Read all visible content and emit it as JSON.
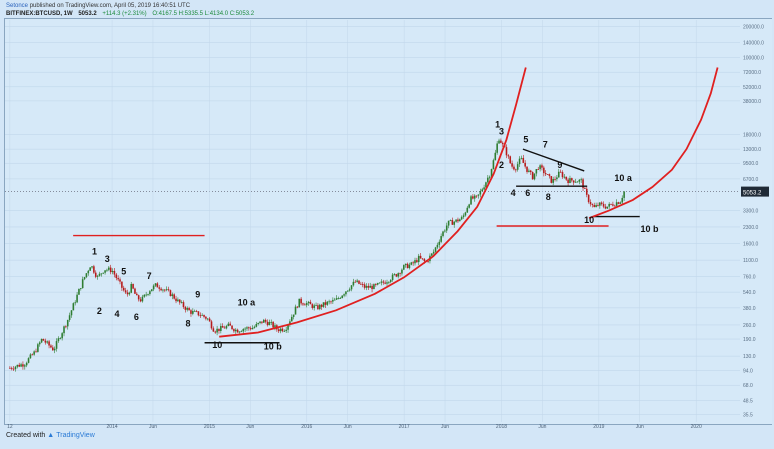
{
  "header": {
    "author": "Setonce",
    "published": "published on TradingView.com, April 05, 2019 16:40:51 UTC",
    "symbol": "BITFINEX:BTCUSD, 1W",
    "last": "5053.2",
    "change": "+114.3 (+2.31%)",
    "ohlc": "O:4167.5 H:5335.5 L:4134.0 C:5053.2"
  },
  "footer": {
    "created_with": "Created with",
    "brand": "TradingView"
  },
  "colors": {
    "background": "#d6e9f8",
    "candle_up": "#2e7d32",
    "candle_down": "#b71c1c",
    "curve": "#e02020",
    "last_price_box": "#1f2a36"
  },
  "chart_data": {
    "type": "candlestick",
    "scale": "log",
    "y_ticks": [
      "200000.0",
      "140000.0",
      "100000.0",
      "72000.0",
      "52000.0",
      "38000.0",
      "18000.0",
      "13000.0",
      "9500.0",
      "6700.0",
      "5053.2",
      "3300.0",
      "2300.0",
      "1600.0",
      "1100.0",
      "760.0",
      "540.0",
      "380.0",
      "260.0",
      "190.0",
      "130.0",
      "94.0",
      "68.0",
      "48.5",
      "35.5"
    ],
    "last_price": "5053.2",
    "x_ticks": [
      "12",
      "2014",
      "Jun",
      "2015",
      "Jun",
      "2016",
      "Jun",
      "2017",
      "Jun",
      "2018",
      "Jun",
      "2019",
      "Jun",
      "2020"
    ],
    "x_tick_dates": [
      2012.95,
      2014.0,
      2014.42,
      2015.0,
      2015.42,
      2016.0,
      2016.42,
      2017.0,
      2017.42,
      2018.0,
      2018.42,
      2019.0,
      2019.42,
      2020.0
    ],
    "price_path": [
      [
        2012.95,
        100
      ],
      [
        2013.1,
        110
      ],
      [
        2013.2,
        140
      ],
      [
        2013.28,
        190
      ],
      [
        2013.4,
        150
      ],
      [
        2013.55,
        300
      ],
      [
        2013.7,
        700
      ],
      [
        2013.78,
        1000
      ],
      [
        2013.85,
        750
      ],
      [
        2013.92,
        900
      ],
      [
        2014.0,
        880
      ],
      [
        2014.1,
        600
      ],
      [
        2014.15,
        500
      ],
      [
        2014.2,
        620
      ],
      [
        2014.25,
        480
      ],
      [
        2014.3,
        450
      ],
      [
        2014.38,
        560
      ],
      [
        2014.45,
        630
      ],
      [
        2014.5,
        600
      ],
      [
        2014.6,
        520
      ],
      [
        2014.7,
        420
      ],
      [
        2014.8,
        350
      ],
      [
        2014.9,
        330
      ],
      [
        2014.98,
        300
      ],
      [
        2015.05,
        230
      ],
      [
        2015.12,
        240
      ],
      [
        2015.2,
        255
      ],
      [
        2015.28,
        230
      ],
      [
        2015.35,
        240
      ],
      [
        2015.45,
        245
      ],
      [
        2015.55,
        285
      ],
      [
        2015.62,
        270
      ],
      [
        2015.7,
        235
      ],
      [
        2015.78,
        240
      ],
      [
        2015.85,
        320
      ],
      [
        2015.92,
        440
      ],
      [
        2016.0,
        420
      ],
      [
        2016.1,
        380
      ],
      [
        2016.2,
        420
      ],
      [
        2016.3,
        450
      ],
      [
        2016.42,
        580
      ],
      [
        2016.5,
        680
      ],
      [
        2016.6,
        600
      ],
      [
        2016.7,
        610
      ],
      [
        2016.8,
        680
      ],
      [
        2016.92,
        800
      ],
      [
        2017.0,
        950
      ],
      [
        2017.08,
        1000
      ],
      [
        2017.15,
        1150
      ],
      [
        2017.22,
        1050
      ],
      [
        2017.3,
        1300
      ],
      [
        2017.38,
        1900
      ],
      [
        2017.45,
        2500
      ],
      [
        2017.52,
        2600
      ],
      [
        2017.6,
        2800
      ],
      [
        2017.68,
        4300
      ],
      [
        2017.75,
        4400
      ],
      [
        2017.82,
        5800
      ],
      [
        2017.88,
        7500
      ],
      [
        2017.93,
        11000
      ],
      [
        2017.97,
        17000
      ],
      [
        2018.0,
        15000
      ],
      [
        2018.05,
        12000
      ],
      [
        2018.1,
        9000
      ],
      [
        2018.14,
        8500
      ],
      [
        2018.2,
        10500
      ],
      [
        2018.26,
        8300
      ],
      [
        2018.32,
        7000
      ],
      [
        2018.38,
        8900
      ],
      [
        2018.45,
        7600
      ],
      [
        2018.52,
        6300
      ],
      [
        2018.6,
        7700
      ],
      [
        2018.68,
        6500
      ],
      [
        2018.75,
        6500
      ],
      [
        2018.82,
        6400
      ],
      [
        2018.88,
        4400
      ],
      [
        2018.95,
        3500
      ],
      [
        2019.0,
        3800
      ],
      [
        2019.08,
        3600
      ],
      [
        2019.16,
        3900
      ],
      [
        2019.22,
        4100
      ],
      [
        2019.26,
        5053
      ]
    ],
    "annotations": [
      {
        "text": "1",
        "x": 2013.82,
        "y": 1250
      },
      {
        "text": "2",
        "x": 2013.87,
        "y": 330
      },
      {
        "text": "3",
        "x": 2013.95,
        "y": 1050
      },
      {
        "text": "4",
        "x": 2014.05,
        "y": 310
      },
      {
        "text": "5",
        "x": 2014.12,
        "y": 800
      },
      {
        "text": "6",
        "x": 2014.25,
        "y": 290
      },
      {
        "text": "7",
        "x": 2014.38,
        "y": 720
      },
      {
        "text": "8",
        "x": 2014.78,
        "y": 250
      },
      {
        "text": "9",
        "x": 2014.88,
        "y": 480
      },
      {
        "text": "10 a",
        "x": 2015.38,
        "y": 400
      },
      {
        "text": "10",
        "x": 2015.08,
        "y": 155
      },
      {
        "text": "10 b",
        "x": 2015.65,
        "y": 150
      },
      {
        "text": "1",
        "x": 2017.96,
        "y": 21000
      },
      {
        "text": "3",
        "x": 2018.0,
        "y": 18000
      },
      {
        "text": "2",
        "x": 2018.0,
        "y": 8500
      },
      {
        "text": "5",
        "x": 2018.25,
        "y": 15000
      },
      {
        "text": "7",
        "x": 2018.45,
        "y": 13500
      },
      {
        "text": "9",
        "x": 2018.6,
        "y": 8500
      },
      {
        "text": "4",
        "x": 2018.12,
        "y": 4600
      },
      {
        "text": "6",
        "x": 2018.27,
        "y": 4600
      },
      {
        "text": "8",
        "x": 2018.48,
        "y": 4200
      },
      {
        "text": "10 a",
        "x": 2019.25,
        "y": 6400
      },
      {
        "text": "10",
        "x": 2018.9,
        "y": 2500
      },
      {
        "text": "10 b",
        "x": 2019.52,
        "y": 2050
      }
    ],
    "trendlines": [
      {
        "style": "red",
        "points": [
          [
            2013.6,
            1900
          ],
          [
            2014.95,
            1900
          ]
        ]
      },
      {
        "style": "black",
        "points": [
          [
            2014.95,
            175
          ],
          [
            2015.72,
            175
          ]
        ]
      },
      {
        "style": "black",
        "points": [
          [
            2018.22,
            13000
          ],
          [
            2018.85,
            8000
          ]
        ]
      },
      {
        "style": "black",
        "points": [
          [
            2018.15,
            5700
          ],
          [
            2018.88,
            5700
          ]
        ]
      },
      {
        "style": "black",
        "points": [
          [
            2018.95,
            2900
          ],
          [
            2019.42,
            2900
          ]
        ]
      },
      {
        "style": "red",
        "points": [
          [
            2017.95,
            2350
          ],
          [
            2019.1,
            2350
          ]
        ]
      }
    ],
    "curves": [
      {
        "points": [
          [
            2015.1,
            200
          ],
          [
            2015.5,
            220
          ],
          [
            2015.9,
            275
          ],
          [
            2016.3,
            360
          ],
          [
            2016.7,
            520
          ],
          [
            2017.0,
            750
          ],
          [
            2017.3,
            1200
          ],
          [
            2017.55,
            2100
          ],
          [
            2017.75,
            3600
          ],
          [
            2017.92,
            7500
          ],
          [
            2018.05,
            16000
          ],
          [
            2018.15,
            35000
          ],
          [
            2018.25,
            80000
          ]
        ]
      },
      {
        "points": [
          [
            2018.9,
            2800
          ],
          [
            2019.1,
            3300
          ],
          [
            2019.35,
            4200
          ],
          [
            2019.55,
            5600
          ],
          [
            2019.75,
            8200
          ],
          [
            2019.9,
            13000
          ],
          [
            2020.05,
            25000
          ],
          [
            2020.15,
            45000
          ],
          [
            2020.22,
            80000
          ]
        ]
      }
    ]
  }
}
